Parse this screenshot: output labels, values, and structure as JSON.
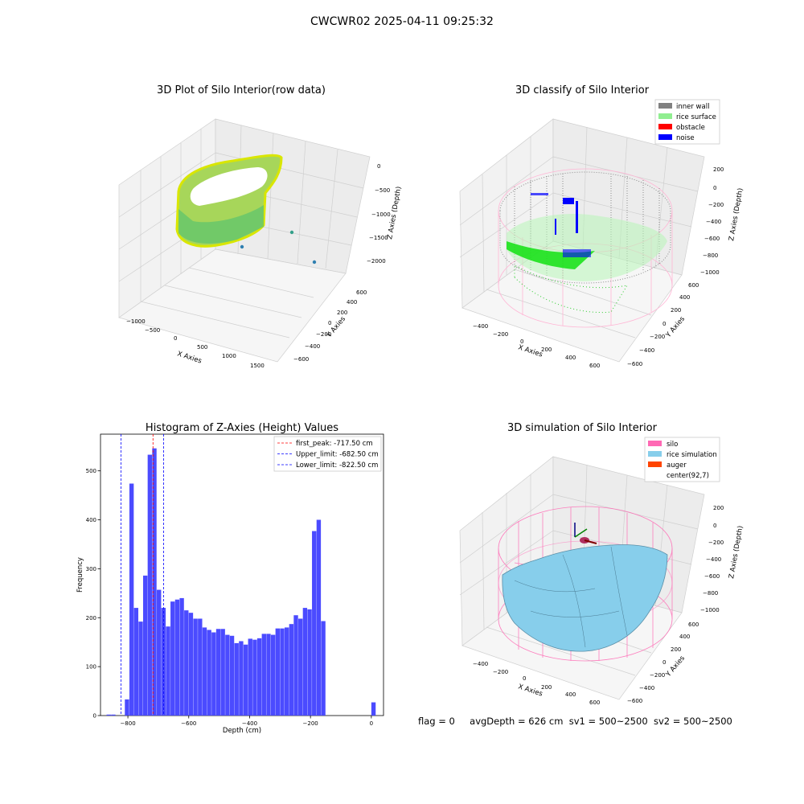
{
  "figure_title": "CWCWR02 2025-04-11 09:25:32",
  "panels": {
    "raw": {
      "title": "3D Plot of Silo Interior(row data)",
      "xlabel": "X Axies",
      "ylabel": "Y Axies",
      "zlabel": "Z Axies (Depth)",
      "xticks": [
        "−1000",
        "−500",
        "0",
        "500",
        "1000",
        "1500"
      ],
      "yticks": [
        "−600",
        "−400",
        "−200",
        "0",
        "200",
        "400",
        "600"
      ],
      "zticks": [
        "0",
        "−500",
        "−1000",
        "−1500",
        "−2000"
      ]
    },
    "classify": {
      "title": "3D classify of Silo Interior",
      "xlabel": "X Axies",
      "ylabel": "Y Axies",
      "zlabel": "Z Axies (Depth)",
      "xticks": [
        "−400",
        "−200",
        "0",
        "200",
        "400",
        "600"
      ],
      "yticks": [
        "−600",
        "−400",
        "−200",
        "0",
        "200",
        "400",
        "600"
      ],
      "zticks": [
        "200",
        "0",
        "−200",
        "−400",
        "−600",
        "−800",
        "−1000"
      ],
      "legend": [
        {
          "label": "inner wall",
          "color": "#808080"
        },
        {
          "label": "rice surface",
          "color": "#90ee90"
        },
        {
          "label": "obstacle",
          "color": "#ff0000"
        },
        {
          "label": "noise",
          "color": "#0000ff"
        }
      ]
    },
    "simulation": {
      "title": "3D simulation of Silo Interior",
      "xlabel": "X Axies",
      "ylabel": "Y Axies",
      "zlabel": "Z Axies (Depth)",
      "xticks": [
        "−400",
        "−200",
        "0",
        "200",
        "400",
        "600"
      ],
      "yticks": [
        "−600",
        "−400",
        "−200",
        "0",
        "200",
        "400",
        "600"
      ],
      "zticks": [
        "200",
        "0",
        "−200",
        "−400",
        "−600",
        "−800",
        "−1000"
      ],
      "legend": [
        {
          "label": "silo",
          "color": "#ff69b4"
        },
        {
          "label": "rice simulation",
          "color": "#87ceeb"
        },
        {
          "label": "auger",
          "color": "#ff4500"
        },
        {
          "label": "center(92,7)",
          "color": ""
        }
      ]
    }
  },
  "status": {
    "flag": "flag = 0",
    "avg_depth": "avgDepth = 626 cm",
    "sv1": "sv1 = 500~2500",
    "sv2": "sv2 = 500~2500"
  },
  "chart_data": [
    {
      "type": "histogram",
      "title": "Histogram of Z-Axies (Height) Values",
      "xlabel": "Depth (cm)",
      "ylabel": "Frequency",
      "xlim": [
        -890,
        40
      ],
      "ylim": [
        0,
        575
      ],
      "xticks": [
        -800,
        -600,
        -400,
        -200,
        0
      ],
      "yticks": [
        0,
        100,
        200,
        300,
        400,
        500
      ],
      "bin_width": 15,
      "bins_start": [
        -870,
        -855,
        -840,
        -825,
        -810,
        -795,
        -780,
        -765,
        -750,
        -735,
        -720,
        -705,
        -690,
        -675,
        -660,
        -645,
        -630,
        -615,
        -600,
        -585,
        -570,
        -555,
        -540,
        -525,
        -510,
        -495,
        -480,
        -465,
        -450,
        -435,
        -420,
        -405,
        -390,
        -375,
        -360,
        -345,
        -330,
        -315,
        -300,
        -285,
        -270,
        -255,
        -240,
        -225,
        -210,
        -195,
        -180,
        -165,
        -150,
        -135,
        -120,
        -105,
        -90,
        -75,
        -60,
        -45,
        -30,
        -15,
        0
      ],
      "frequencies": [
        2,
        2,
        0,
        0,
        33,
        474,
        220,
        192,
        286,
        533,
        546,
        257,
        220,
        182,
        233,
        237,
        240,
        215,
        210,
        198,
        198,
        180,
        175,
        170,
        177,
        177,
        165,
        163,
        148,
        152,
        145,
        157,
        155,
        158,
        167,
        167,
        165,
        178,
        178,
        180,
        187,
        205,
        198,
        220,
        217,
        377,
        400,
        193,
        0,
        0,
        0,
        0,
        0,
        0,
        0,
        0,
        0,
        0,
        27
      ],
      "bar_color": "#4b4bff",
      "vlines": [
        {
          "label": "first_peak: -717.50 cm",
          "x": -717.5,
          "color": "#ff0000"
        },
        {
          "label": "Upper_limit: -682.50 cm",
          "x": -682.5,
          "color": "#0000ff"
        },
        {
          "label": "Lower_limit: -822.50 cm",
          "x": -822.5,
          "color": "#0000ff"
        }
      ],
      "legend_position": "top-right"
    }
  ]
}
